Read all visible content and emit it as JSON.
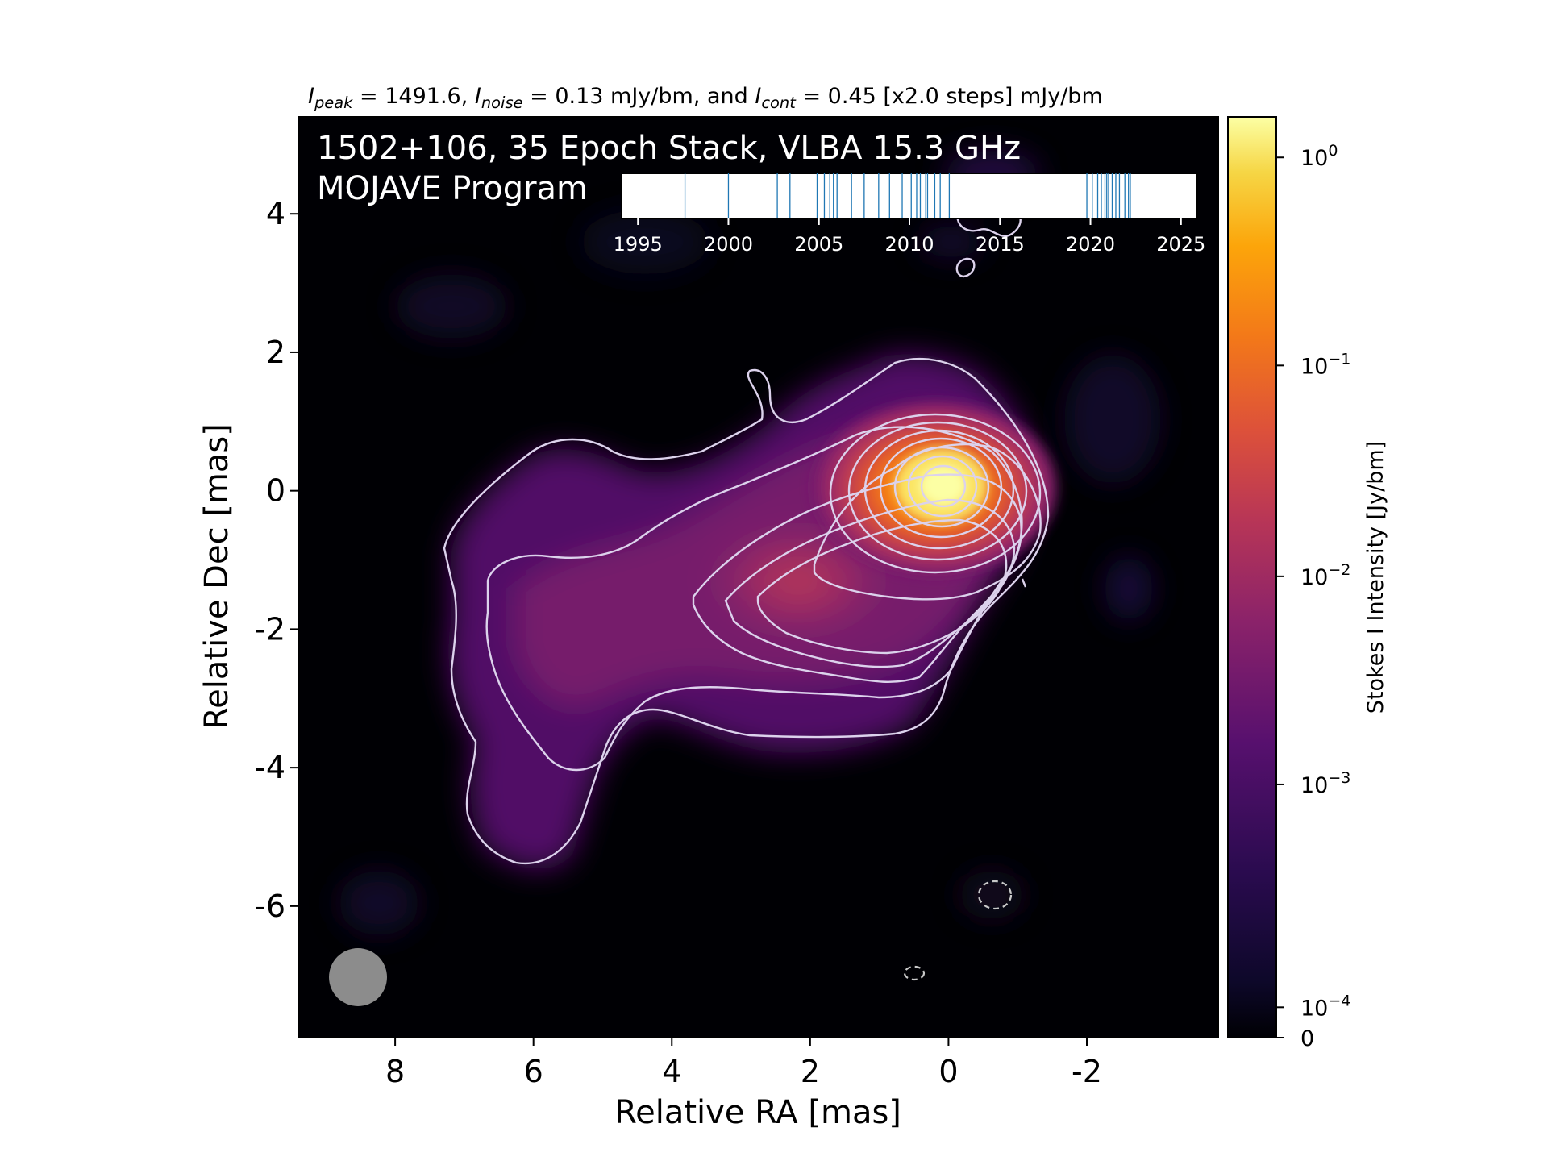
{
  "chart_data": {
    "type": "heatmap",
    "header": {
      "p1": "I",
      "s1": "peak",
      "p2": " = 1491.6, ",
      "p3": "I",
      "s2": "noise",
      "p4": " = 0.13 mJy/bm, and ",
      "p5": "I",
      "s3": "cont",
      "p6": " = 0.45 [x2.0 steps] mJy/bm"
    },
    "title_line1": "1502+106, 35 Epoch Stack, VLBA 15.3 GHz",
    "title_line2": "MOJAVE Program",
    "xlabel": "Relative RA [mas]",
    "ylabel": "Relative Dec [mas]",
    "xlim": [
      9.4,
      -3.9
    ],
    "ylim": [
      -7.9,
      5.4
    ],
    "xticks": [
      {
        "v": 8,
        "label": "8"
      },
      {
        "v": 6,
        "label": "6"
      },
      {
        "v": 4,
        "label": "4"
      },
      {
        "v": 2,
        "label": "2"
      },
      {
        "v": 0,
        "label": "0"
      },
      {
        "v": -2,
        "label": "-2"
      }
    ],
    "yticks": [
      {
        "v": 4,
        "label": "4"
      },
      {
        "v": 2,
        "label": "2"
      },
      {
        "v": 0,
        "label": "0"
      },
      {
        "v": -2,
        "label": "-2"
      },
      {
        "v": -4,
        "label": "-4"
      },
      {
        "v": -6,
        "label": "-6"
      }
    ],
    "colorbar": {
      "label": "Stokes I Intensity [Jy/bm]",
      "colormap": "inferno",
      "ticks": [
        {
          "base": "10",
          "exp": "0",
          "frac": 0.044
        },
        {
          "base": "10",
          "exp": "−1",
          "frac": 0.27
        },
        {
          "base": "10",
          "exp": "−2",
          "frac": 0.499
        },
        {
          "base": "10",
          "exp": "−3",
          "frac": 0.725
        },
        {
          "base": "10",
          "exp": "−4",
          "frac": 0.967
        },
        {
          "base": "",
          "exp": "",
          "label": "0",
          "frac": 1.0
        }
      ]
    },
    "peak_position": [
      0,
      0
    ],
    "beam": {
      "ra": 8.5,
      "dec": -7.0
    },
    "epoch_timeline": {
      "ticks": [
        "1995",
        "2000",
        "2005",
        "2010",
        "2015",
        "2020",
        "2025"
      ],
      "range": [
        1994.1,
        2025.9
      ],
      "epochs": [
        1997.6,
        2000.0,
        2002.7,
        2003.4,
        2004.9,
        2005.3,
        2005.6,
        2005.8,
        2006.0,
        2006.8,
        2007.5,
        2008.3,
        2008.9,
        2009.6,
        2010.1,
        2010.4,
        2010.6,
        2010.9,
        2011.0,
        2011.4,
        2011.7,
        2012.2,
        2019.8,
        2020.1,
        2020.4,
        2020.6,
        2020.8,
        2020.9,
        2021.0,
        2021.2,
        2021.4,
        2021.6,
        2021.9,
        2022.1,
        2022.2
      ]
    }
  },
  "colors": {
    "contour": "#dcd2ec",
    "background": "#000004",
    "beam": "#8c8c8c",
    "epoch_line": "#1f77b4",
    "annotation_text": "#ffffff"
  }
}
